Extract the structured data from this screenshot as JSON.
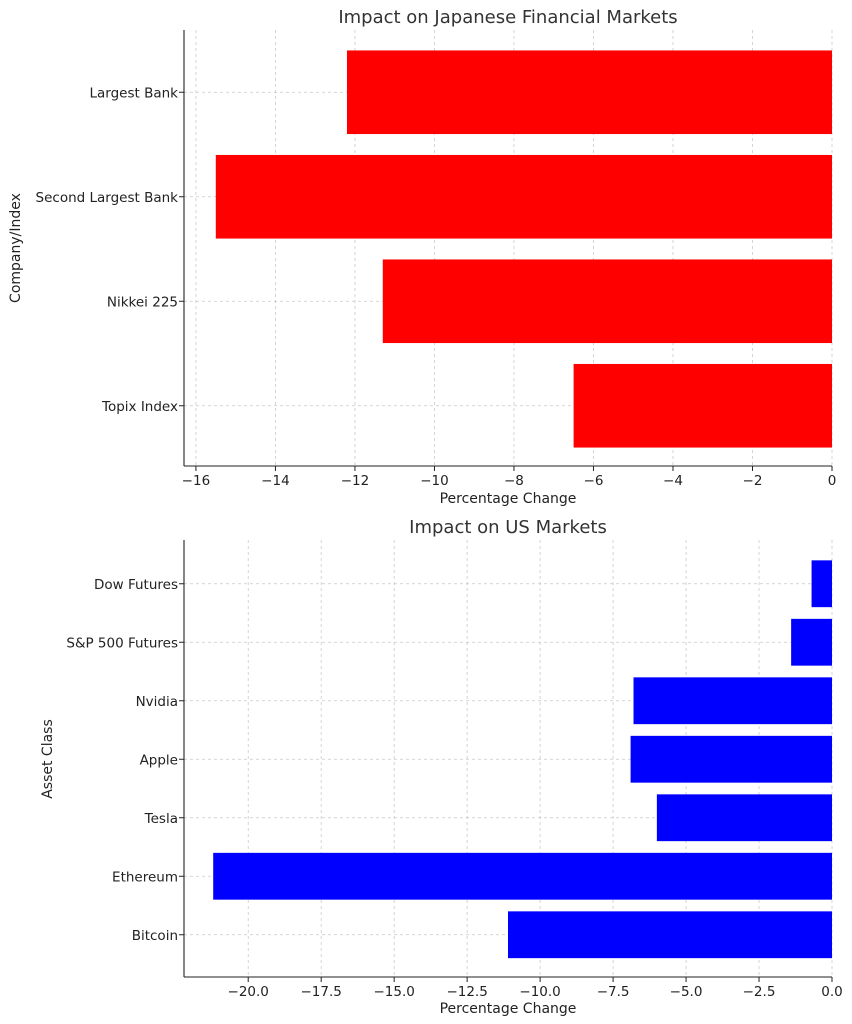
{
  "chart_data": [
    {
      "type": "bar",
      "orientation": "horizontal",
      "title": "Impact on Japanese Financial Markets",
      "xlabel": "Percentage Change",
      "ylabel": "Company/Index",
      "categories": [
        "Topix Index",
        "Nikkei 225",
        "Second Largest Bank",
        "Largest Bank"
      ],
      "values": [
        -6.5,
        -11.3,
        -15.5,
        -12.2
      ],
      "xlim": [
        -16.3,
        0
      ],
      "xticks": [
        -16,
        -14,
        -12,
        -10,
        -8,
        -6,
        -4,
        -2,
        0
      ],
      "xtick_labels": [
        "−16",
        "−14",
        "−12",
        "−10",
        "−8",
        "−6",
        "−4",
        "−2",
        "0"
      ],
      "color": "#ff0000",
      "grid": true
    },
    {
      "type": "bar",
      "orientation": "horizontal",
      "title": "Impact on US Markets",
      "xlabel": "Percentage Change",
      "ylabel": "Asset Class",
      "categories": [
        "Bitcoin",
        "Ethereum",
        "Tesla",
        "Apple",
        "Nvidia",
        "S&P 500 Futures",
        "Dow Futures"
      ],
      "values": [
        -11.1,
        -21.2,
        -6.0,
        -6.9,
        -6.8,
        -1.4,
        -0.7
      ],
      "xlim": [
        -22.2,
        0
      ],
      "xticks": [
        -20,
        -17.5,
        -15,
        -12.5,
        -10,
        -7.5,
        -5,
        -2.5,
        0
      ],
      "xtick_labels": [
        "−20.0",
        "−17.5",
        "−15.0",
        "−12.5",
        "−10.0",
        "−7.5",
        "−5.0",
        "−2.5",
        "0.0"
      ],
      "color": "#0000ff",
      "grid": true
    }
  ]
}
